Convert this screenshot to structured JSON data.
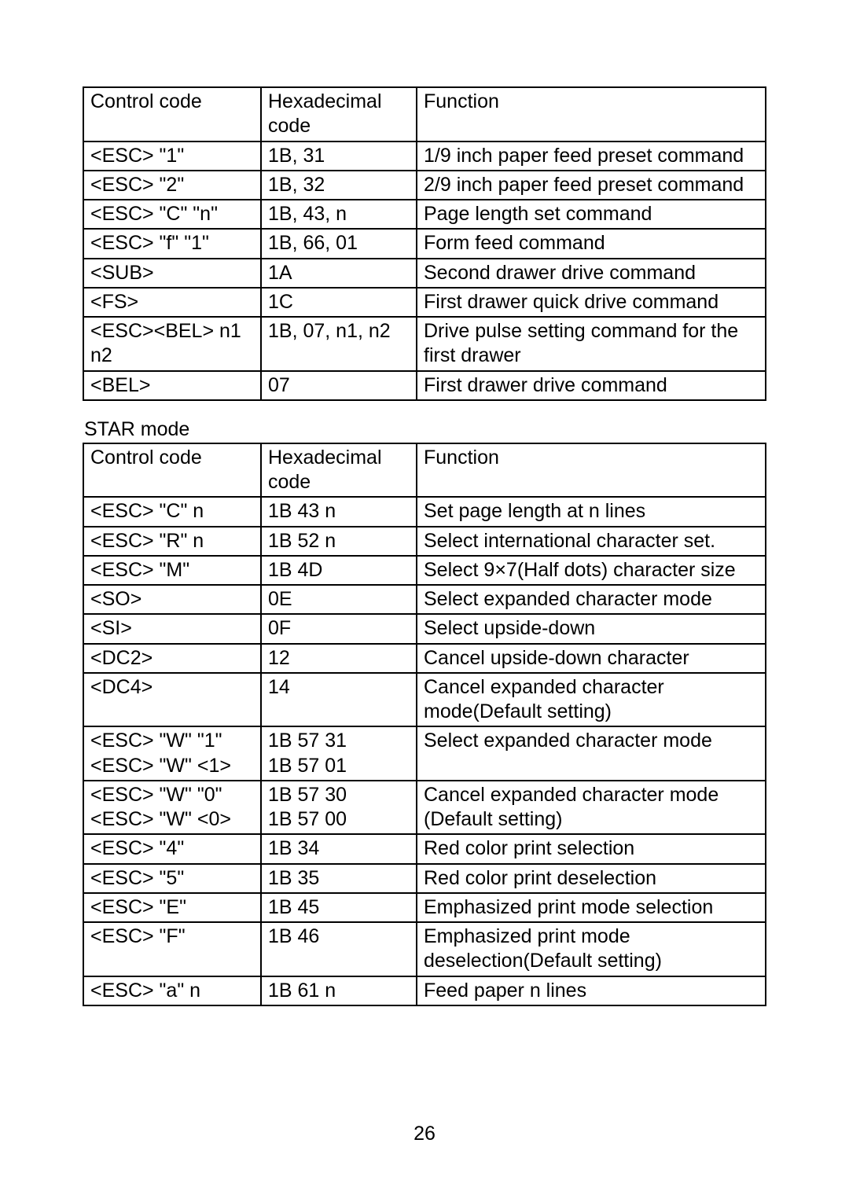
{
  "page_number": "26",
  "section_label": "STAR mode",
  "table1": {
    "headers": [
      "Control code",
      "Hexadecimal code",
      "Function"
    ],
    "rows": [
      [
        "<ESC> \"1\"",
        "1B, 31",
        "1/9 inch paper feed preset command"
      ],
      [
        "<ESC> \"2\"",
        "1B, 32",
        "2/9 inch paper feed preset command"
      ],
      [
        "<ESC> \"C\" \"n\"",
        "1B, 43, n",
        "Page length set command"
      ],
      [
        "<ESC> \"f\" \"1\"",
        "1B, 66, 01",
        "Form feed command"
      ],
      [
        "<SUB>",
        "1A",
        "Second drawer drive command"
      ],
      [
        "<FS>",
        "1C",
        "First drawer quick drive command"
      ],
      [
        "<ESC><BEL> n1 n2",
        "1B, 07, n1, n2",
        "Drive pulse setting command for the first drawer"
      ],
      [
        "<BEL>",
        "07",
        "First drawer drive command"
      ]
    ]
  },
  "table2": {
    "headers": [
      "Control code",
      "Hexadecimal code",
      "Function"
    ],
    "rows": [
      [
        "<ESC> \"C\" n",
        "1B 43 n",
        "Set page length at n lines"
      ],
      [
        "<ESC> \"R\" n",
        "1B 52 n",
        "Select international character set."
      ],
      [
        "<ESC> \"M\"",
        "1B 4D",
        "Select 9×7(Half dots) character size"
      ],
      [
        "<SO>",
        "0E",
        "Select expanded character mode"
      ],
      [
        "<SI>",
        "0F",
        "Select upside-down"
      ],
      [
        "<DC2>",
        "12",
        "Cancel upside-down character"
      ],
      [
        "<DC4>",
        "14",
        "Cancel expanded character mode(Default setting)"
      ],
      [
        "<ESC> \"W\" \"1\"\n<ESC> \"W\" <1>",
        "1B 57 31\n1B 57 01",
        "Select expanded character mode"
      ],
      [
        "<ESC> \"W\" \"0\"\n<ESC> \"W\" <0>",
        "1B 57 30\n1B 57 00",
        "Cancel expanded character mode (Default setting)"
      ],
      [
        "<ESC> \"4\"",
        "1B 34",
        "Red color print selection"
      ],
      [
        "<ESC> \"5\"",
        "1B 35",
        "Red color print deselection"
      ],
      [
        "<ESC> \"E\"",
        "1B 45",
        "Emphasized print mode selection"
      ],
      [
        "<ESC> \"F\"",
        "1B 46",
        "Emphasized print mode deselection(Default setting)"
      ],
      [
        "<ESC> \"a\" n",
        "1B 61 n",
        "Feed paper n lines"
      ]
    ]
  }
}
